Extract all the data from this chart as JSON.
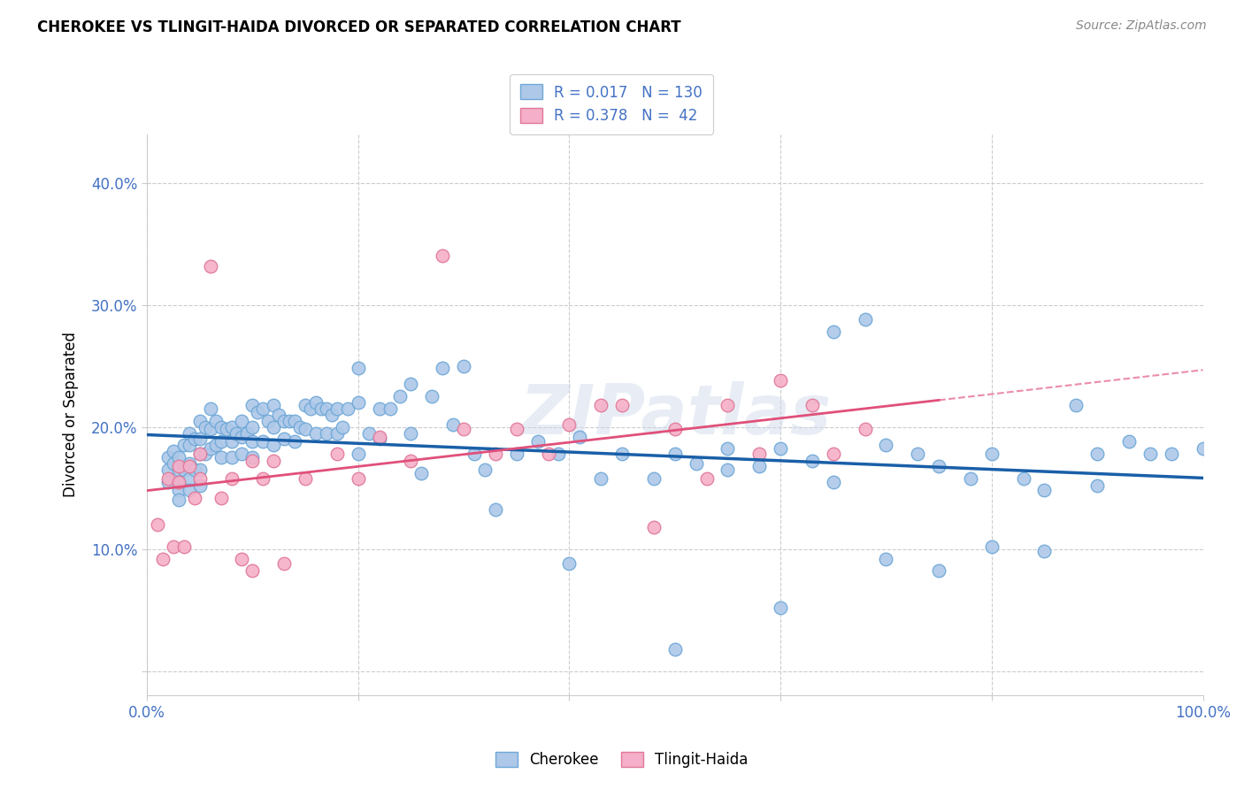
{
  "title": "CHEROKEE VS TLINGIT-HAIDA DIVORCED OR SEPARATED CORRELATION CHART",
  "source": "Source: ZipAtlas.com",
  "ylabel": "Divorced or Separated",
  "xlim": [
    0.0,
    1.0
  ],
  "ylim": [
    -0.02,
    0.44
  ],
  "yticks": [
    0.0,
    0.1,
    0.2,
    0.3,
    0.4
  ],
  "ytick_labels": [
    "",
    "10.0%",
    "20.0%",
    "30.0%",
    "40.0%"
  ],
  "xticks": [
    0.0,
    0.2,
    0.4,
    0.6,
    0.8,
    1.0
  ],
  "xtick_labels": [
    "0.0%",
    "",
    "",
    "",
    "",
    "100.0%"
  ],
  "cherokee_R": 0.017,
  "cherokee_N": 130,
  "tlingit_R": 0.378,
  "tlingit_N": 42,
  "cherokee_face": "#adc8e8",
  "cherokee_edge": "#6fa8d8",
  "tlingit_face": "#f5afc8",
  "tlingit_edge": "#e07898",
  "line_cherokee_color": "#1a5fa8",
  "line_tlingit_color": "#e0507a",
  "watermark": "ZIPatlas",
  "cherokee_x": [
    0.02,
    0.02,
    0.02,
    0.025,
    0.025,
    0.03,
    0.03,
    0.03,
    0.03,
    0.03,
    0.035,
    0.035,
    0.04,
    0.04,
    0.04,
    0.04,
    0.04,
    0.045,
    0.045,
    0.05,
    0.05,
    0.05,
    0.05,
    0.05,
    0.055,
    0.055,
    0.06,
    0.06,
    0.06,
    0.065,
    0.065,
    0.07,
    0.07,
    0.07,
    0.075,
    0.08,
    0.08,
    0.08,
    0.085,
    0.09,
    0.09,
    0.09,
    0.095,
    0.1,
    0.1,
    0.1,
    0.1,
    0.105,
    0.11,
    0.11,
    0.115,
    0.12,
    0.12,
    0.12,
    0.125,
    0.13,
    0.13,
    0.135,
    0.14,
    0.14,
    0.145,
    0.15,
    0.15,
    0.155,
    0.16,
    0.16,
    0.165,
    0.17,
    0.17,
    0.175,
    0.18,
    0.18,
    0.185,
    0.19,
    0.2,
    0.2,
    0.21,
    0.22,
    0.22,
    0.23,
    0.24,
    0.25,
    0.25,
    0.26,
    0.27,
    0.28,
    0.29,
    0.3,
    0.31,
    0.32,
    0.33,
    0.35,
    0.37,
    0.39,
    0.41,
    0.43,
    0.45,
    0.48,
    0.5,
    0.52,
    0.55,
    0.58,
    0.6,
    0.63,
    0.65,
    0.68,
    0.7,
    0.73,
    0.75,
    0.78,
    0.8,
    0.83,
    0.85,
    0.88,
    0.9,
    0.93,
    0.95,
    0.97,
    0.5,
    0.6,
    0.7,
    0.8,
    0.9,
    1.0,
    0.65,
    0.75,
    0.85,
    0.2,
    0.4,
    0.55
  ],
  "cherokee_y": [
    0.175,
    0.165,
    0.155,
    0.18,
    0.17,
    0.175,
    0.165,
    0.155,
    0.148,
    0.14,
    0.185,
    0.165,
    0.195,
    0.185,
    0.17,
    0.158,
    0.148,
    0.19,
    0.165,
    0.205,
    0.19,
    0.178,
    0.165,
    0.152,
    0.2,
    0.178,
    0.215,
    0.198,
    0.182,
    0.205,
    0.185,
    0.2,
    0.188,
    0.175,
    0.198,
    0.2,
    0.188,
    0.175,
    0.195,
    0.205,
    0.192,
    0.178,
    0.195,
    0.218,
    0.2,
    0.188,
    0.175,
    0.212,
    0.215,
    0.188,
    0.205,
    0.218,
    0.2,
    0.185,
    0.21,
    0.205,
    0.19,
    0.205,
    0.205,
    0.188,
    0.2,
    0.218,
    0.198,
    0.215,
    0.22,
    0.195,
    0.215,
    0.215,
    0.195,
    0.21,
    0.215,
    0.195,
    0.2,
    0.215,
    0.248,
    0.22,
    0.195,
    0.215,
    0.19,
    0.215,
    0.225,
    0.235,
    0.195,
    0.162,
    0.225,
    0.248,
    0.202,
    0.25,
    0.178,
    0.165,
    0.132,
    0.178,
    0.188,
    0.178,
    0.192,
    0.158,
    0.178,
    0.158,
    0.178,
    0.17,
    0.182,
    0.168,
    0.182,
    0.172,
    0.278,
    0.288,
    0.185,
    0.178,
    0.082,
    0.158,
    0.178,
    0.158,
    0.098,
    0.218,
    0.178,
    0.188,
    0.178,
    0.178,
    0.018,
    0.052,
    0.092,
    0.102,
    0.152,
    0.182,
    0.155,
    0.168,
    0.148,
    0.178,
    0.088,
    0.165
  ],
  "tlingit_x": [
    0.01,
    0.015,
    0.02,
    0.025,
    0.03,
    0.03,
    0.035,
    0.04,
    0.045,
    0.05,
    0.05,
    0.06,
    0.07,
    0.08,
    0.09,
    0.1,
    0.1,
    0.11,
    0.12,
    0.13,
    0.15,
    0.18,
    0.2,
    0.22,
    0.25,
    0.28,
    0.3,
    0.33,
    0.35,
    0.38,
    0.4,
    0.43,
    0.45,
    0.48,
    0.5,
    0.53,
    0.55,
    0.58,
    0.6,
    0.63,
    0.65,
    0.68
  ],
  "tlingit_y": [
    0.12,
    0.092,
    0.158,
    0.102,
    0.168,
    0.155,
    0.102,
    0.168,
    0.142,
    0.178,
    0.158,
    0.332,
    0.142,
    0.158,
    0.092,
    0.172,
    0.082,
    0.158,
    0.172,
    0.088,
    0.158,
    0.178,
    0.158,
    0.192,
    0.172,
    0.34,
    0.198,
    0.178,
    0.198,
    0.178,
    0.202,
    0.218,
    0.218,
    0.118,
    0.198,
    0.158,
    0.218,
    0.178,
    0.238,
    0.218,
    0.178,
    0.198
  ]
}
